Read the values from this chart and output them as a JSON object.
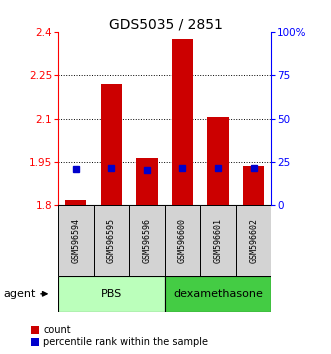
{
  "title": "GDS5035 / 2851",
  "samples": [
    "GSM596594",
    "GSM596595",
    "GSM596596",
    "GSM596600",
    "GSM596601",
    "GSM596602"
  ],
  "red_values": [
    1.82,
    2.22,
    1.965,
    2.375,
    2.105,
    1.935
  ],
  "blue_values": [
    1.925,
    1.928,
    1.923,
    1.929,
    1.928,
    1.928
  ],
  "red_base": 1.8,
  "ylim_left": [
    1.8,
    2.4
  ],
  "ylim_right": [
    0,
    100
  ],
  "yticks_left": [
    1.8,
    1.95,
    2.1,
    2.25,
    2.4
  ],
  "ytick_labels_left": [
    "1.8",
    "1.95",
    "2.1",
    "2.25",
    "2.4"
  ],
  "yticks_right": [
    0,
    25,
    50,
    75,
    100
  ],
  "ytick_labels_right": [
    "0",
    "25",
    "50",
    "75",
    "100%"
  ],
  "grid_yticks": [
    1.95,
    2.1,
    2.25
  ],
  "bar_width": 0.6,
  "bar_color": "#CC0000",
  "blue_color": "#0000CC",
  "groups_info": [
    {
      "label": "PBS",
      "start": 0,
      "end": 2,
      "color": "#BBFFBB"
    },
    {
      "label": "dexamethasone",
      "start": 3,
      "end": 5,
      "color": "#44CC44"
    }
  ],
  "agent_label": "agent",
  "legend_count": "count",
  "legend_percentile": "percentile rank within the sample",
  "title_fontsize": 10,
  "axis_fontsize": 7.5,
  "sample_fontsize": 6,
  "group_fontsize": 8,
  "legend_fontsize": 7
}
